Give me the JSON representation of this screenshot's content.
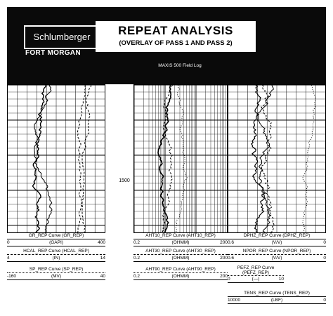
{
  "header": {
    "company": "Schlumberger",
    "location": "FORT MORGAN",
    "title": "REPEAT ANALYSIS",
    "subtitle": "(OVERLAY OF PASS 1 AND PASS 2)",
    "field_log": "MAXIS 500 Field Log"
  },
  "depth_label": "1500",
  "legend": {
    "gr": {
      "name": "GR_REP Curve (GR_REP)",
      "left": "0",
      "unit": "(GAPI)",
      "right": "400"
    },
    "hcal": {
      "name": "HCAL_REP Curve (HCAL_REP)",
      "left": "4",
      "unit": "(IN)",
      "right": "14"
    },
    "sp": {
      "name": "SP_REP Curve (SP_REP)",
      "left": "-160",
      "unit": "(MV)",
      "right": "40"
    },
    "aht10": {
      "name": "AHT10_REP Curve (AHT10_REP)",
      "left": "0.2",
      "unit": "(OHMM)",
      "right": "200"
    },
    "aht30": {
      "name": "AHT30_REP Curve (AHT30_REP)",
      "left": "0.2",
      "unit": "(OHMM)",
      "right": "200"
    },
    "aht90": {
      "name": "AHT90_REP Curve (AHT90_REP)",
      "left": "0.2",
      "unit": "(OHMM)",
      "right": "200"
    },
    "dphz": {
      "name": "DPHZ_REP Curve (DPHZ_REP)",
      "left": "0.6",
      "unit": "(V/V)",
      "right": "0"
    },
    "npor": {
      "name": "NPOR_REP Curve (NPOR_REP)",
      "left": "0.6",
      "unit": "(V/V)",
      "right": "0"
    },
    "pefz": {
      "name": "PEFZ_REP Curve (PEFZ_REP)",
      "left": "0",
      "unit": "(—)",
      "right": "10"
    },
    "tens": {
      "name": "TENS_REP Curve (TENS_REP)",
      "left": "10000",
      "unit": "(LBF)",
      "right": "0"
    }
  }
}
